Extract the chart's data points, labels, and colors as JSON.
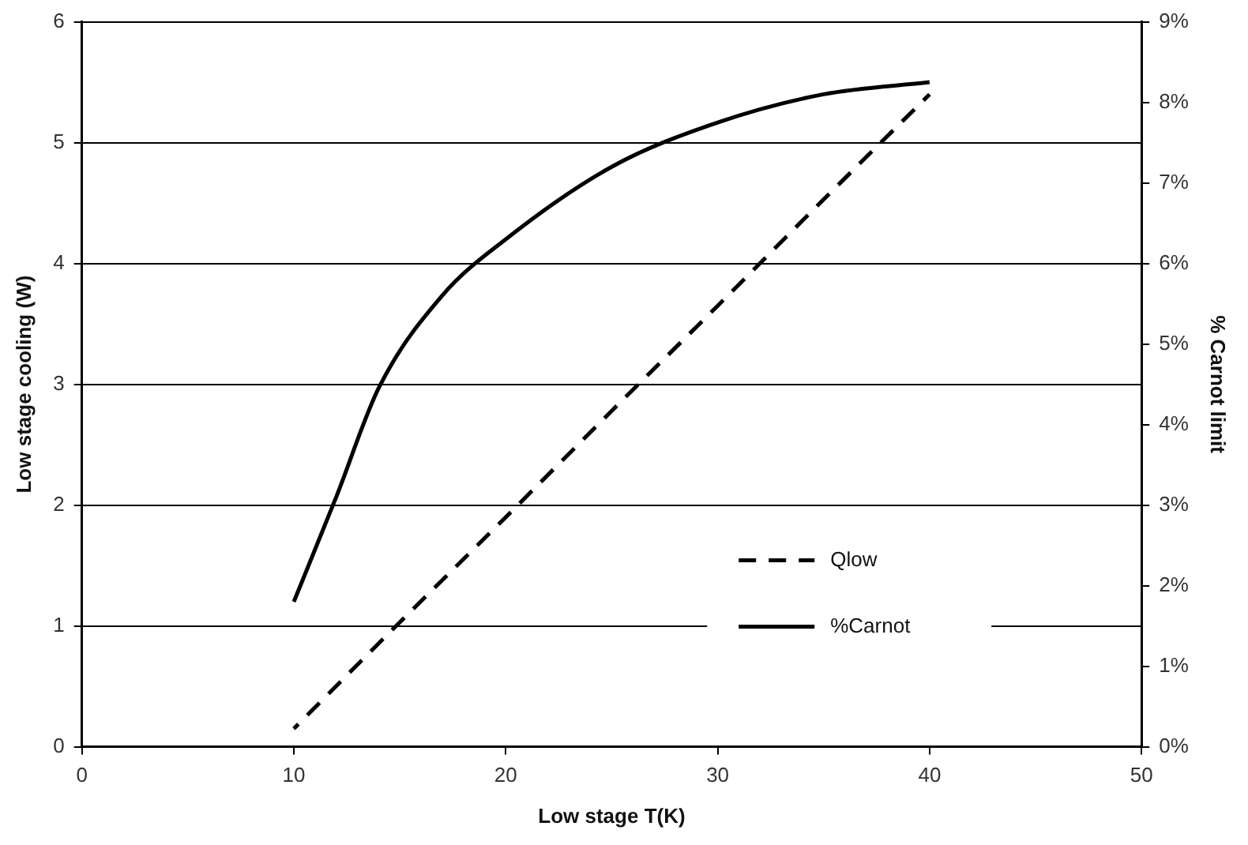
{
  "chart_data": {
    "type": "line",
    "xlabel": "Low stage T(K)",
    "ylabel": "Low stage cooling (W)",
    "y2label": "% Carnot limit",
    "xlim": [
      0,
      50
    ],
    "xticks": [
      0,
      10,
      20,
      30,
      40,
      50
    ],
    "ylim": [
      0,
      6
    ],
    "yticks": [
      0,
      1,
      2,
      3,
      4,
      5,
      6
    ],
    "y2lim": [
      0,
      9
    ],
    "y2ticks": [
      {
        "value": 0,
        "label": "0%"
      },
      {
        "value": 1,
        "label": "1%"
      },
      {
        "value": 2,
        "label": "2%"
      },
      {
        "value": 3,
        "label": "3%"
      },
      {
        "value": 4,
        "label": "4%"
      },
      {
        "value": 5,
        "label": "5%"
      },
      {
        "value": 6,
        "label": "6%"
      },
      {
        "value": 7,
        "label": "7%"
      },
      {
        "value": 8,
        "label": "8%"
      },
      {
        "value": 9,
        "label": "9%"
      }
    ],
    "grid": "y",
    "legend": "bottom right",
    "marker": "none",
    "series": [
      {
        "name": "Qlow",
        "color": "#000000",
        "line_style": "dashed",
        "x": [
          10,
          15,
          20,
          25,
          30,
          35,
          40
        ],
        "values": [
          0.15,
          1.03,
          1.9,
          2.78,
          3.65,
          4.53,
          5.4
        ]
      },
      {
        "name": "%Carnot",
        "color": "#000000",
        "line_style": "solid",
        "axis": "y2",
        "x": [
          10,
          12,
          14,
          17,
          20,
          25,
          30,
          35,
          40
        ],
        "values": [
          1.8,
          3.1,
          4.45,
          5.6,
          6.3,
          7.2,
          7.75,
          8.1,
          8.25
        ]
      }
    ]
  }
}
